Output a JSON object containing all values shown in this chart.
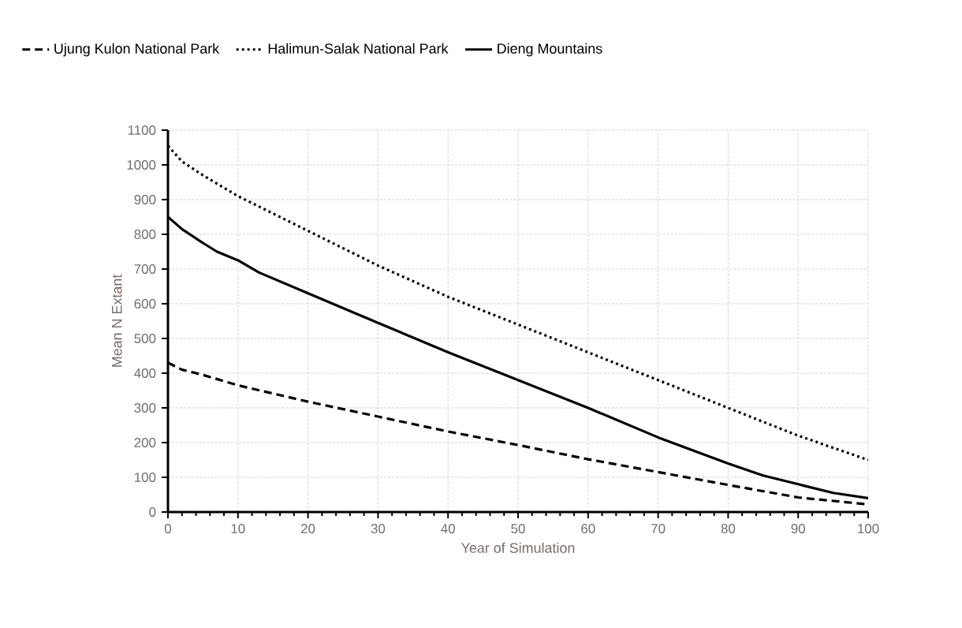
{
  "chart_data": {
    "type": "line",
    "xlabel": "Year of Simulation",
    "ylabel": "Mean N Extant",
    "xlim": [
      0,
      100
    ],
    "ylim": [
      0,
      1100
    ],
    "xticks": [
      0,
      10,
      20,
      30,
      40,
      50,
      60,
      70,
      80,
      90,
      100
    ],
    "yticks": [
      0,
      100,
      200,
      300,
      400,
      500,
      600,
      700,
      800,
      900,
      1000,
      1100
    ],
    "grid": true,
    "legend": "top",
    "marker": "none",
    "series": [
      {
        "name": "Ujung Kulon National Park",
        "color": "#000000",
        "line_style": "dashed",
        "x": [
          0,
          2,
          5,
          10,
          20,
          30,
          40,
          50,
          60,
          70,
          80,
          85,
          90,
          100
        ],
        "values": [
          430,
          410,
          395,
          365,
          318,
          275,
          232,
          193,
          152,
          115,
          78,
          60,
          42,
          22
        ]
      },
      {
        "name": "Halimun-Salak National Park",
        "color": "#000000",
        "line_style": "dotted",
        "x": [
          0,
          2,
          5,
          10,
          20,
          30,
          40,
          50,
          60,
          70,
          80,
          90,
          100
        ],
        "values": [
          1055,
          1010,
          970,
          910,
          810,
          710,
          620,
          540,
          460,
          380,
          300,
          220,
          150
        ]
      },
      {
        "name": "Dieng Mountains",
        "color": "#000000",
        "line_style": "solid",
        "x": [
          0,
          2,
          5,
          7,
          10,
          13,
          20,
          30,
          40,
          50,
          60,
          70,
          80,
          85,
          90,
          95,
          100
        ],
        "values": [
          850,
          815,
          775,
          750,
          725,
          690,
          630,
          545,
          460,
          380,
          300,
          215,
          140,
          105,
          80,
          55,
          40
        ]
      }
    ]
  }
}
